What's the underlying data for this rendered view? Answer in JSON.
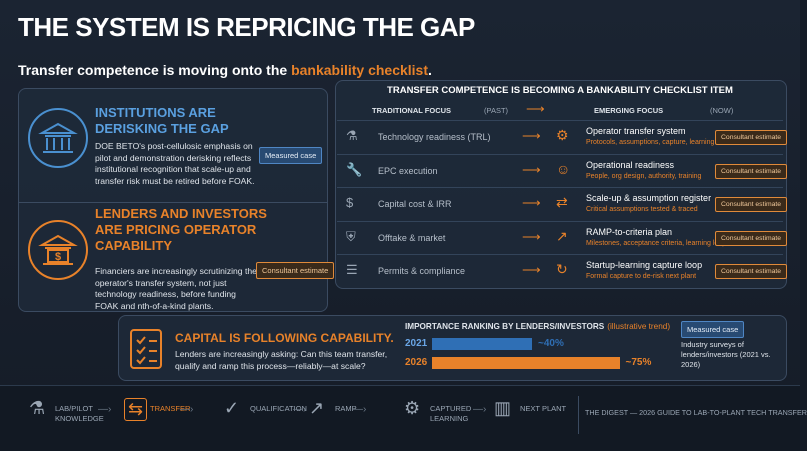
{
  "header": {
    "title": "THE SYSTEM IS REPRICING THE GAP",
    "subtitle": {
      "prefix": "Transfer competence is moving onto the ",
      "highlight": "bankability checklist",
      "suffix": "."
    }
  },
  "left_panel": {
    "sections": [
      {
        "title": "INSTITUTIONS ARE DERISKING THE GAP",
        "body": "DOE BETO's post-cellulosic emphasis on pilot and demonstration derisking reflects institutional recognition that scale-up and transfer risk must be retired before FOAK.",
        "badge": "Measured case"
      },
      {
        "title": "LENDERS AND INVESTORS ARE PRICING OPERATOR CAPABILITY",
        "body": "Financiers are increasingly scrutinizing the operator's transfer system, not just technology readiness, before funding FOAK and nth-of-a-kind plants.",
        "badge": "Consultant estimate"
      }
    ]
  },
  "table": {
    "title": "TRANSFER COMPETENCE IS BECOMING A BANKABILITY CHECKLIST ITEM",
    "headers": {
      "traditional": "TRADITIONAL FOCUS",
      "past": "(PAST)",
      "emerging": "EMERGING FOCUS",
      "now": "(NOW)"
    },
    "rows": [
      {
        "traditional": "Technology readiness (TRL)",
        "emerging": "Operator transfer system",
        "detail": "Protocols, assumptions, capture, learning",
        "badge": "Consultant estimate"
      },
      {
        "traditional": "EPC execution",
        "emerging": "Operational readiness",
        "detail": "People, org design, authority, training",
        "badge": "Consultant estimate"
      },
      {
        "traditional": "Capital cost & IRR",
        "emerging": "Scale-up & assumption register",
        "detail": "Critical assumptions tested & traced",
        "badge": "Consultant estimate"
      },
      {
        "traditional": "Offtake & market",
        "emerging": "RAMP-to-criteria plan",
        "detail": "Milestones, acceptance criteria, learning loop",
        "badge": "Consultant estimate"
      },
      {
        "traditional": "Permits & compliance",
        "emerging": "Startup-learning capture loop",
        "detail": "Formal capture to de-risk next plant",
        "badge": "Consultant estimate"
      }
    ]
  },
  "capital_panel": {
    "title": "CAPITAL IS FOLLOWING CAPABILITY.",
    "body": "Lenders are increasingly asking: Can this team transfer, qualify and ramp this process—reliably—at scale?",
    "badge": "Measured case",
    "note": "Industry surveys of lenders/investors (2021 vs. 2026)"
  },
  "chart_data": {
    "type": "bar",
    "title": "IMPORTANCE RANKING BY LENDERS/INVESTORS",
    "subtitle": "(illustrative trend)",
    "categories": [
      "2021",
      "2026"
    ],
    "series": [
      {
        "name": null,
        "colors": [
          "#2f6fb5",
          "#e8822a"
        ],
        "values": [
          40,
          75
        ],
        "value_labels": [
          "~40%",
          "~75%"
        ]
      }
    ],
    "xlim": [
      0,
      100
    ]
  },
  "footer": {
    "steps": [
      "LAB/PILOT KNOWLEDGE",
      "TRANSFER",
      "QUALIFICATION",
      "RAMP",
      "CAPTURED LEARNING",
      "NEXT PLANT"
    ],
    "credit": "THE DIGEST — 2026 GUIDE TO LAB-TO-PLANT TECH TRANSFER"
  }
}
